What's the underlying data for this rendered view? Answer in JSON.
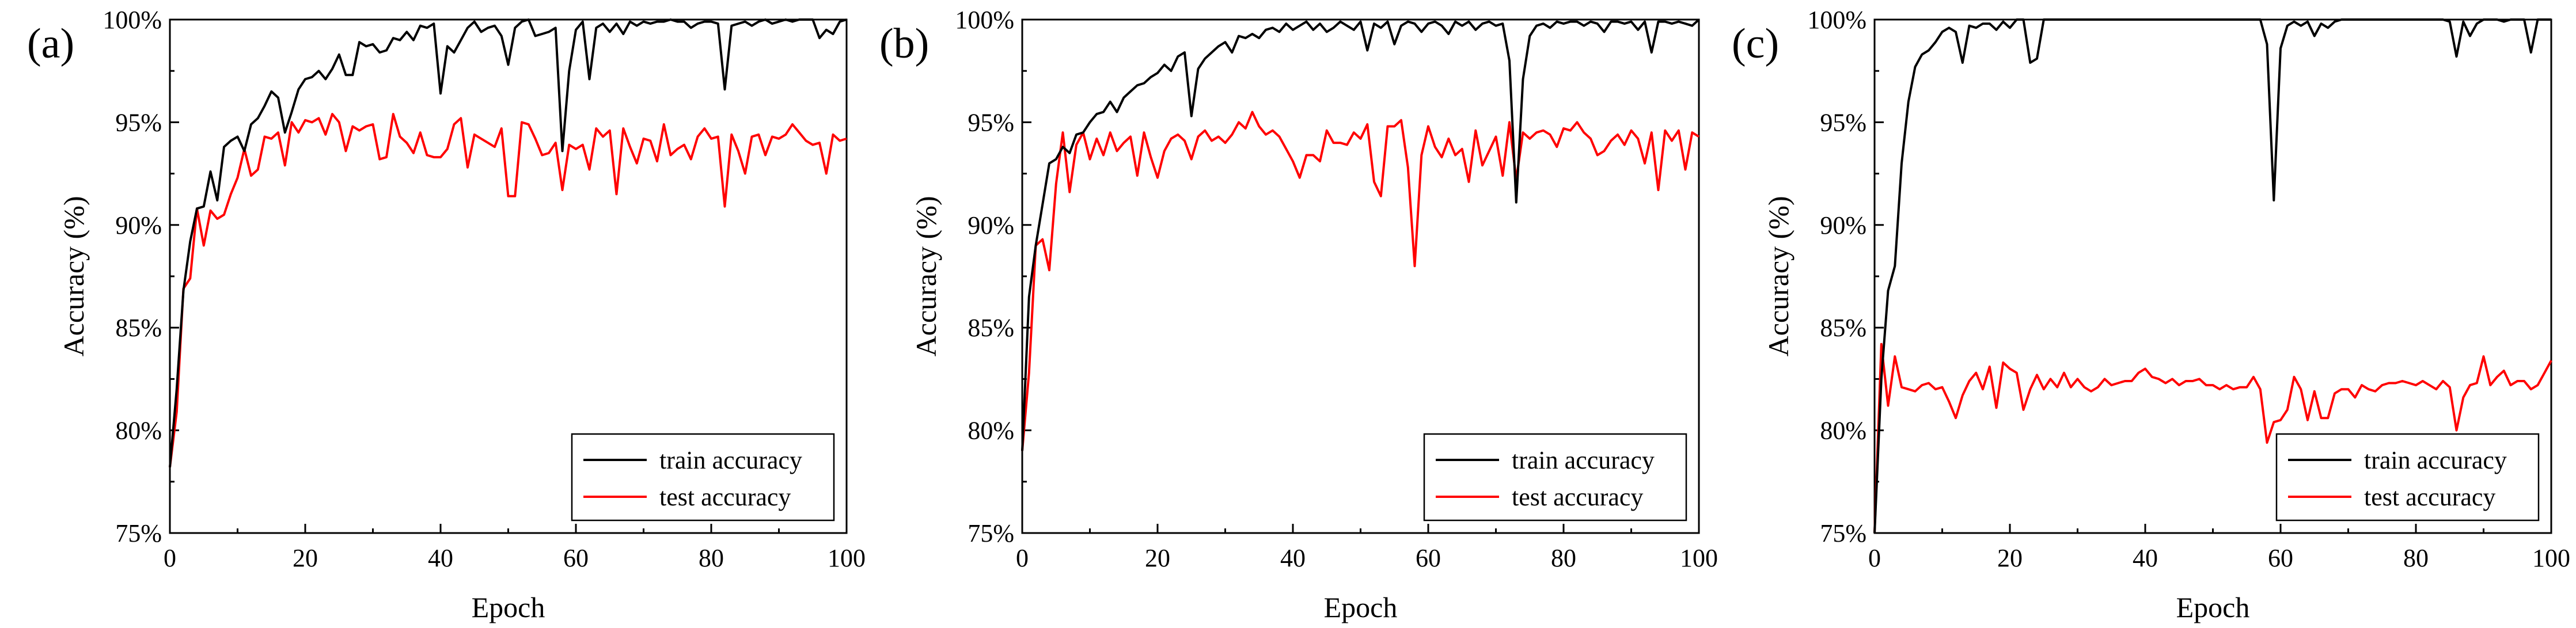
{
  "chart_data": [
    {
      "type": "line",
      "panel_label": "(a)",
      "xlabel": "Epoch",
      "ylabel": "Accuracy (%)",
      "xlim": [
        0,
        100
      ],
      "ylim": [
        75,
        100
      ],
      "xticks": [
        0,
        20,
        40,
        60,
        80,
        100
      ],
      "yticks": [
        75,
        80,
        85,
        90,
        95,
        100
      ],
      "ytick_labels": [
        "75%",
        "80%",
        "85%",
        "90%",
        "95%",
        "100%"
      ],
      "legend_position": "bottom-right",
      "grid": false,
      "series": [
        {
          "name": "train accuracy",
          "color": "#000000",
          "values": [
            78.2,
            82.0,
            86.8,
            89.2,
            90.8,
            90.9,
            92.6,
            91.2,
            93.8,
            94.1,
            94.3,
            93.6,
            94.9,
            95.2,
            95.8,
            96.5,
            96.2,
            94.5,
            95.5,
            96.6,
            97.1,
            97.2,
            97.5,
            97.1,
            97.6,
            98.3,
            97.3,
            97.3,
            98.9,
            98.7,
            98.8,
            98.4,
            98.5,
            99.1,
            99.0,
            99.4,
            99.0,
            99.7,
            99.6,
            99.8,
            96.4,
            98.7,
            98.4,
            99.0,
            99.6,
            99.9,
            99.4,
            99.6,
            99.7,
            99.2,
            97.8,
            99.6,
            99.9,
            100.0,
            99.2,
            99.3,
            99.4,
            99.6,
            93.6,
            97.5,
            99.5,
            99.9,
            97.1,
            99.6,
            99.8,
            99.4,
            99.8,
            99.3,
            99.9,
            99.7,
            99.9,
            99.8,
            99.9,
            99.9,
            100.0,
            99.9,
            99.9,
            99.6,
            99.8,
            99.9,
            99.9,
            99.8,
            96.6,
            99.7,
            99.8,
            99.9,
            99.7,
            99.9,
            100.0,
            99.8,
            99.9,
            100.0,
            99.9,
            100.0,
            100.0,
            100.0,
            99.1,
            99.5,
            99.3,
            99.9,
            100.0
          ]
        },
        {
          "name": "test accuracy",
          "color": "#ff0000",
          "values": [
            78.2,
            80.9,
            86.9,
            87.4,
            90.8,
            89.0,
            90.7,
            90.3,
            90.5,
            91.5,
            92.3,
            93.7,
            92.4,
            92.7,
            94.3,
            94.2,
            94.5,
            92.9,
            95.0,
            94.5,
            95.1,
            95.0,
            95.2,
            94.4,
            95.4,
            95.0,
            93.6,
            94.8,
            94.6,
            94.8,
            94.9,
            93.2,
            93.3,
            95.4,
            94.3,
            94.0,
            93.5,
            94.5,
            93.4,
            93.3,
            93.3,
            93.7,
            94.9,
            95.2,
            92.8,
            94.4,
            94.2,
            94.0,
            93.8,
            94.7,
            91.4,
            91.4,
            95.0,
            94.9,
            94.2,
            93.4,
            93.5,
            94.0,
            91.7,
            93.9,
            93.7,
            93.9,
            92.7,
            94.7,
            94.3,
            94.6,
            91.5,
            94.7,
            93.8,
            93.0,
            94.2,
            94.1,
            93.1,
            94.9,
            93.4,
            93.7,
            93.9,
            93.2,
            94.3,
            94.7,
            94.2,
            94.3,
            90.9,
            94.4,
            93.6,
            92.5,
            94.3,
            94.4,
            93.4,
            94.3,
            94.2,
            94.4,
            94.9,
            94.5,
            94.1,
            93.9,
            94.0,
            92.5,
            94.4,
            94.1,
            94.2
          ]
        }
      ]
    },
    {
      "type": "line",
      "panel_label": "(b)",
      "xlabel": "Epoch",
      "ylabel": "Accuracy (%)",
      "xlim": [
        0,
        100
      ],
      "ylim": [
        75,
        100
      ],
      "xticks": [
        0,
        20,
        40,
        60,
        80,
        100
      ],
      "yticks": [
        75,
        80,
        85,
        90,
        95,
        100
      ],
      "ytick_labels": [
        "75%",
        "80%",
        "85%",
        "90%",
        "95%",
        "100%"
      ],
      "legend_position": "bottom-right",
      "grid": false,
      "series": [
        {
          "name": "train accuracy",
          "color": "#000000",
          "values": [
            79.0,
            86.5,
            89.0,
            91.0,
            93.0,
            93.2,
            93.8,
            93.5,
            94.4,
            94.5,
            95.0,
            95.4,
            95.5,
            96.0,
            95.5,
            96.2,
            96.5,
            96.8,
            96.9,
            97.2,
            97.4,
            97.8,
            97.5,
            98.2,
            98.4,
            95.3,
            97.6,
            98.1,
            98.4,
            98.7,
            98.9,
            98.4,
            99.2,
            99.1,
            99.3,
            99.1,
            99.5,
            99.6,
            99.4,
            99.8,
            99.5,
            99.7,
            99.9,
            99.5,
            99.8,
            99.4,
            99.6,
            99.9,
            99.7,
            99.5,
            99.9,
            98.5,
            99.8,
            99.6,
            99.9,
            98.8,
            99.7,
            99.9,
            99.8,
            99.4,
            99.8,
            99.9,
            99.7,
            99.3,
            99.9,
            99.7,
            99.9,
            99.5,
            99.8,
            99.9,
            99.7,
            99.8,
            98.0,
            91.1,
            97.1,
            99.2,
            99.7,
            99.8,
            99.6,
            99.9,
            99.8,
            99.9,
            99.9,
            99.7,
            99.9,
            99.8,
            99.4,
            99.9,
            99.9,
            99.8,
            99.9,
            99.5,
            99.9,
            98.4,
            99.9,
            99.9,
            99.8,
            99.9,
            99.8,
            99.7,
            100.0
          ]
        },
        {
          "name": "test accuracy",
          "color": "#ff0000",
          "values": [
            79.0,
            82.8,
            89.0,
            89.3,
            87.8,
            92.0,
            94.5,
            91.6,
            93.9,
            94.5,
            93.2,
            94.2,
            93.4,
            94.5,
            93.6,
            94.0,
            94.3,
            92.4,
            94.5,
            93.3,
            92.3,
            93.6,
            94.2,
            94.4,
            94.1,
            93.2,
            94.3,
            94.6,
            94.1,
            94.3,
            94.0,
            94.4,
            95.0,
            94.7,
            95.5,
            94.8,
            94.4,
            94.6,
            94.3,
            93.7,
            93.1,
            92.3,
            93.4,
            93.4,
            93.1,
            94.6,
            94.0,
            94.0,
            93.9,
            94.5,
            94.2,
            94.9,
            92.1,
            91.4,
            94.8,
            94.8,
            95.1,
            92.8,
            88.0,
            93.4,
            94.8,
            93.8,
            93.3,
            94.2,
            93.4,
            93.7,
            92.1,
            94.6,
            92.9,
            93.6,
            94.3,
            92.4,
            95.0,
            92.2,
            94.5,
            94.2,
            94.5,
            94.6,
            94.4,
            93.8,
            94.7,
            94.6,
            95.0,
            94.5,
            94.2,
            93.4,
            93.6,
            94.1,
            94.4,
            93.9,
            94.6,
            94.2,
            93.0,
            94.5,
            91.7,
            94.6,
            94.1,
            94.6,
            92.7,
            94.5,
            94.3
          ]
        }
      ]
    },
    {
      "type": "line",
      "panel_label": "(c)",
      "xlabel": "Epoch",
      "ylabel": "Accuracy (%)",
      "xlim": [
        0,
        100
      ],
      "ylim": [
        75,
        100
      ],
      "xticks": [
        0,
        20,
        40,
        60,
        80,
        100
      ],
      "yticks": [
        75,
        80,
        85,
        90,
        95,
        100
      ],
      "ytick_labels": [
        "75%",
        "80%",
        "85%",
        "90%",
        "95%",
        "100%"
      ],
      "legend_position": "bottom-right",
      "grid": false,
      "series": [
        {
          "name": "train accuracy",
          "color": "#000000",
          "values": [
            75.0,
            82.5,
            86.8,
            88.0,
            93.0,
            96.0,
            97.7,
            98.3,
            98.5,
            98.9,
            99.4,
            99.6,
            99.4,
            97.9,
            99.7,
            99.6,
            99.8,
            99.8,
            99.5,
            99.9,
            99.6,
            100.0,
            100.0,
            97.9,
            98.1,
            100.0,
            100.0,
            100.0,
            100.0,
            100.0,
            100.0,
            100.0,
            100.0,
            100.0,
            100.0,
            100.0,
            100.0,
            100.0,
            100.0,
            100.0,
            100.0,
            100.0,
            100.0,
            100.0,
            100.0,
            100.0,
            100.0,
            100.0,
            100.0,
            100.0,
            100.0,
            100.0,
            100.0,
            100.0,
            100.0,
            100.0,
            100.0,
            100.0,
            98.8,
            91.2,
            98.6,
            99.7,
            99.9,
            99.7,
            99.9,
            99.2,
            99.8,
            99.6,
            99.9,
            100.0,
            100.0,
            100.0,
            100.0,
            100.0,
            100.0,
            100.0,
            100.0,
            100.0,
            100.0,
            100.0,
            100.0,
            100.0,
            100.0,
            100.0,
            100.0,
            99.9,
            98.2,
            99.9,
            99.2,
            99.8,
            100.0,
            100.0,
            100.0,
            99.9,
            100.0,
            100.0,
            100.0,
            98.4,
            100.0,
            100.0,
            100.0
          ]
        },
        {
          "name": "test accuracy",
          "color": "#ff0000",
          "values": [
            75.0,
            84.2,
            81.2,
            83.6,
            82.1,
            82.0,
            81.9,
            82.2,
            82.3,
            82.0,
            82.1,
            81.4,
            80.6,
            81.7,
            82.4,
            82.8,
            82.0,
            83.1,
            81.1,
            83.3,
            83.0,
            82.8,
            81.0,
            82.0,
            82.7,
            82.0,
            82.5,
            82.1,
            82.8,
            82.1,
            82.5,
            82.1,
            81.9,
            82.1,
            82.5,
            82.2,
            82.3,
            82.4,
            82.4,
            82.8,
            83.0,
            82.6,
            82.5,
            82.3,
            82.5,
            82.2,
            82.4,
            82.4,
            82.5,
            82.2,
            82.2,
            82.0,
            82.2,
            82.0,
            82.1,
            82.1,
            82.6,
            82.0,
            79.4,
            80.4,
            80.5,
            81.0,
            82.6,
            82.0,
            80.5,
            81.9,
            80.6,
            80.6,
            81.8,
            82.0,
            82.0,
            81.6,
            82.2,
            82.0,
            81.9,
            82.2,
            82.3,
            82.3,
            82.4,
            82.3,
            82.2,
            82.4,
            82.2,
            82.0,
            82.4,
            82.1,
            80.0,
            81.6,
            82.2,
            82.3,
            83.6,
            82.2,
            82.6,
            82.9,
            82.2,
            82.4,
            82.4,
            82.0,
            82.2,
            82.8,
            83.4
          ]
        }
      ]
    }
  ]
}
